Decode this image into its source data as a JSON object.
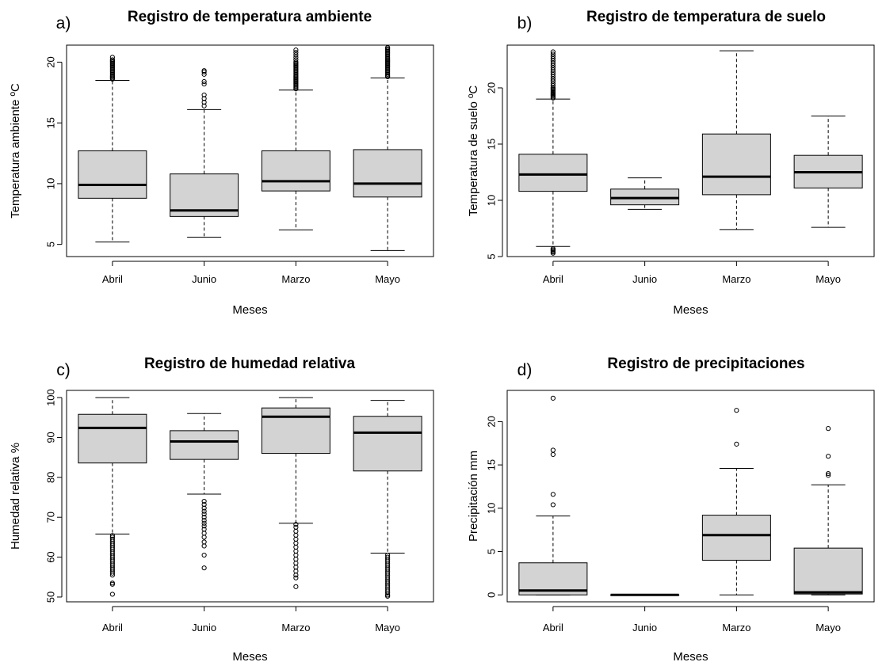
{
  "chart_data": [
    {
      "type": "boxplot",
      "panel_label": "a)",
      "title": "Registro de temperatura ambiente",
      "xlabel": "Meses",
      "ylabel": "Temperatura ambiente ºC",
      "categories": [
        "Abril",
        "Junio",
        "Marzo",
        "Mayo"
      ],
      "ylim": [
        4.0,
        21.4
      ],
      "yticks": [
        5,
        10,
        15,
        20
      ],
      "boxes": [
        {
          "min": 5.2,
          "q1": 8.8,
          "median": 9.9,
          "q3": 12.7,
          "max": 18.5,
          "outliers": [
            18.6,
            18.7,
            18.8,
            18.9,
            19.0,
            19.1,
            19.2,
            19.3,
            19.4,
            19.5,
            19.6,
            19.7,
            19.8,
            19.9,
            20.0,
            20.1,
            20.2,
            20.4
          ]
        },
        {
          "min": 5.6,
          "q1": 7.3,
          "median": 7.8,
          "q3": 10.8,
          "max": 16.1,
          "outliers": [
            16.4,
            16.7,
            17.0,
            17.3,
            18.2,
            18.4,
            19.0,
            19.2,
            19.3
          ]
        },
        {
          "min": 6.2,
          "q1": 9.4,
          "median": 10.2,
          "q3": 12.7,
          "max": 17.7,
          "outliers": [
            17.8,
            17.9,
            18.0,
            18.1,
            18.2,
            18.3,
            18.4,
            18.5,
            18.6,
            18.7,
            18.8,
            18.9,
            19.0,
            19.1,
            19.2,
            19.3,
            19.4,
            19.5,
            19.6,
            19.7,
            19.8,
            19.9,
            20.0,
            20.2,
            20.4,
            20.6,
            20.8,
            21.0
          ]
        },
        {
          "min": 4.5,
          "q1": 8.9,
          "median": 10.0,
          "q3": 12.8,
          "max": 18.7,
          "outliers": [
            18.8,
            18.9,
            19.0,
            19.1,
            19.2,
            19.3,
            19.4,
            19.5,
            19.6,
            19.7,
            19.8,
            19.9,
            20.0,
            20.1,
            20.2,
            20.3,
            20.4,
            20.5,
            20.6,
            20.7,
            20.8,
            20.9,
            21.0,
            21.1,
            21.2
          ]
        }
      ]
    },
    {
      "type": "boxplot",
      "panel_label": "b)",
      "title": "Registro de temperatura de suelo",
      "xlabel": "Meses",
      "ylabel": "Temperatura de suelo ºC",
      "categories": [
        "Abril",
        "Junio",
        "Marzo",
        "Mayo"
      ],
      "ylim": [
        5.0,
        23.8
      ],
      "yticks": [
        5,
        10,
        15,
        20
      ],
      "boxes": [
        {
          "min": 5.9,
          "q1": 10.8,
          "median": 12.3,
          "q3": 14.1,
          "max": 19.0,
          "outliers": [
            5.3,
            5.4,
            5.5,
            5.6,
            5.7,
            19.1,
            19.2,
            19.3,
            19.4,
            19.5,
            19.6,
            19.7,
            19.8,
            19.9,
            20.0,
            20.2,
            20.4,
            20.6,
            20.8,
            21.0,
            21.2,
            21.4,
            21.6,
            21.8,
            22.0,
            22.2,
            22.4,
            22.6,
            22.8,
            23.0,
            23.2
          ]
        },
        {
          "min": 9.2,
          "q1": 9.6,
          "median": 10.2,
          "q3": 11.0,
          "max": 12.0,
          "outliers": []
        },
        {
          "min": 7.4,
          "q1": 10.5,
          "median": 12.1,
          "q3": 15.9,
          "max": 23.3,
          "outliers": []
        },
        {
          "min": 7.6,
          "q1": 11.1,
          "median": 12.5,
          "q3": 14.0,
          "max": 17.5,
          "outliers": []
        }
      ]
    },
    {
      "type": "boxplot",
      "panel_label": "c)",
      "title": "Registro de humedad relativa",
      "xlabel": "Meses",
      "ylabel": "Humedad relativa %",
      "categories": [
        "Abril",
        "Junio",
        "Marzo",
        "Mayo"
      ],
      "ylim": [
        48.8,
        101.8
      ],
      "yticks": [
        50,
        60,
        70,
        80,
        90,
        100
      ],
      "boxes": [
        {
          "min": 65.8,
          "q1": 83.6,
          "median": 92.4,
          "q3": 95.8,
          "max": 100,
          "outliers": [
            50.7,
            53.2,
            53.5,
            55.5,
            56.0,
            56.5,
            57.0,
            57.5,
            58.0,
            58.5,
            59.0,
            59.5,
            60.0,
            60.5,
            61.0,
            61.5,
            62.0,
            62.5,
            63.0,
            63.5,
            64.0,
            64.5,
            65.0,
            65.4
          ]
        },
        {
          "min": 75.8,
          "q1": 84.5,
          "median": 89.0,
          "q3": 91.7,
          "max": 96.0,
          "outliers": [
            57.3,
            60.5,
            62.8,
            63.8,
            65.0,
            66.0,
            67.0,
            67.8,
            68.5,
            69.2,
            70.0,
            70.8,
            71.5,
            72.3,
            73.2,
            74.0
          ]
        },
        {
          "min": 68.5,
          "q1": 86.0,
          "median": 95.2,
          "q3": 97.4,
          "max": 100,
          "outliers": [
            52.6,
            54.8,
            55.5,
            56.5,
            57.5,
            58.5,
            59.5,
            60.5,
            61.5,
            62.5,
            63.5,
            64.5,
            65.5,
            66.5,
            67.5,
            68.2
          ]
        },
        {
          "min": 61.0,
          "q1": 81.6,
          "median": 91.2,
          "q3": 95.3,
          "max": 99.3,
          "outliers": [
            50.2,
            50.5,
            51.0,
            51.5,
            52.0,
            52.5,
            53.0,
            53.5,
            54.0,
            54.5,
            55.0,
            55.5,
            56.0,
            56.5,
            57.0,
            57.5,
            58.0,
            58.5,
            59.0,
            59.5,
            60.0,
            60.5
          ]
        }
      ]
    },
    {
      "type": "boxplot",
      "panel_label": "d)",
      "title": "Registro de precipitaciones",
      "xlabel": "Meses",
      "ylabel": "Precipitación mm",
      "categories": [
        "Abril",
        "Junio",
        "Marzo",
        "Mayo"
      ],
      "ylim": [
        -0.8,
        23.6
      ],
      "yticks": [
        0,
        5,
        10,
        15,
        20
      ],
      "boxes": [
        {
          "min": 0,
          "q1": 0,
          "median": 0.5,
          "q3": 3.7,
          "max": 9.1,
          "outliers": [
            10.4,
            11.6,
            16.2,
            16.7,
            22.7
          ]
        },
        {
          "min": 0,
          "q1": 0,
          "median": 0,
          "q3": 0,
          "max": 0,
          "outliers": []
        },
        {
          "min": 0,
          "q1": 4.0,
          "median": 6.9,
          "q3": 9.2,
          "max": 14.6,
          "outliers": [
            17.4,
            21.3
          ]
        },
        {
          "min": 0,
          "q1": 0.1,
          "median": 0.3,
          "q3": 5.4,
          "max": 12.7,
          "outliers": [
            13.8,
            14.0,
            16.0,
            19.2
          ]
        }
      ]
    }
  ]
}
